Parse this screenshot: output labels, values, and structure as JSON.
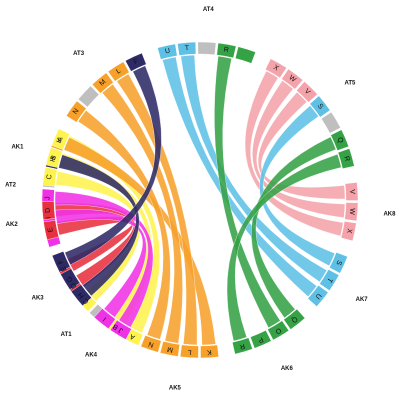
{
  "colors": {
    "yellow": "#FFF34D",
    "red": "#E8303F",
    "magenta": "#F032E6",
    "navy": "#2D2A66",
    "orange": "#F7A12B",
    "blue": "#5FC0E6",
    "green": "#34A245",
    "pink": "#F4A3AA",
    "gray": "#BFBFBF"
  },
  "sectors": [
    {
      "name": "AT1",
      "segments": [
        {
          "label": "A",
          "color": "yellow"
        },
        {
          "label": "B",
          "color": "yellow"
        },
        {
          "label": "",
          "color": "gray"
        },
        {
          "label": "C",
          "color": "yellow"
        },
        {
          "label": "D",
          "color": "red"
        },
        {
          "label": "E",
          "color": "red"
        }
      ]
    },
    {
      "name": "AT2",
      "segments": [
        {
          "label": "",
          "color": "magenta"
        },
        {
          "label": "I",
          "color": "magenta"
        },
        {
          "label": "J",
          "color": "magenta"
        },
        {
          "label": "",
          "color": "gray"
        },
        {
          "label": "H",
          "color": "navy"
        },
        {
          "label": "K",
          "color": "orange"
        }
      ]
    },
    {
      "name": "AT3",
      "segments": [
        {
          "label": "N",
          "color": "orange"
        },
        {
          "label": "",
          "color": "gray"
        },
        {
          "label": "M",
          "color": "orange"
        },
        {
          "label": "L",
          "color": "orange"
        },
        {
          "label": "F",
          "color": "navy"
        }
      ]
    },
    {
      "name": "AT4",
      "segments": [
        {
          "label": "U",
          "color": "blue"
        },
        {
          "label": "T",
          "color": "blue"
        },
        {
          "label": "",
          "color": "gray"
        },
        {
          "label": "R",
          "color": "green"
        },
        {
          "label": "",
          "color": "green"
        }
      ]
    },
    {
      "name": "AT5",
      "segments": [
        {
          "label": "X",
          "color": "pink"
        },
        {
          "label": "W",
          "color": "pink"
        },
        {
          "label": "V",
          "color": "pink"
        },
        {
          "label": "S",
          "color": "blue"
        },
        {
          "label": "",
          "color": "gray"
        },
        {
          "label": "Q",
          "color": "green"
        },
        {
          "label": "R",
          "color": "green"
        }
      ]
    },
    {
      "name": "AK8",
      "segments": [
        {
          "label": "V",
          "color": "pink"
        },
        {
          "label": "W",
          "color": "pink"
        },
        {
          "label": "X",
          "color": "pink"
        }
      ]
    },
    {
      "name": "AK7",
      "segments": [
        {
          "label": "S",
          "color": "blue"
        },
        {
          "label": "T",
          "color": "blue"
        },
        {
          "label": "U",
          "color": "blue"
        }
      ]
    },
    {
      "name": "AK6",
      "segments": [
        {
          "label": "Q",
          "color": "green"
        },
        {
          "label": "O",
          "color": "green"
        },
        {
          "label": "P",
          "color": "green"
        },
        {
          "label": "R",
          "color": "green"
        }
      ]
    },
    {
      "name": "AK5",
      "segments": [
        {
          "label": "K",
          "color": "orange"
        },
        {
          "label": "L",
          "color": "orange"
        },
        {
          "label": "M",
          "color": "orange"
        },
        {
          "label": "N",
          "color": "orange"
        }
      ]
    },
    {
      "name": "AK4",
      "segments": [
        {
          "label": "J",
          "color": "magenta"
        },
        {
          "label": "I",
          "color": "magenta"
        }
      ]
    },
    {
      "name": "AK3",
      "segments": [
        {
          "label": "H",
          "color": "navy"
        },
        {
          "label": "G",
          "color": "navy"
        },
        {
          "label": "F",
          "color": "navy"
        }
      ]
    },
    {
      "name": "AK2",
      "segments": [
        {
          "label": "E",
          "color": "red"
        },
        {
          "label": "D",
          "color": "red"
        }
      ]
    },
    {
      "name": "AK1",
      "segments": [
        {
          "label": "C",
          "color": "yellow"
        },
        {
          "label": "B",
          "color": "yellow"
        },
        {
          "label": "A",
          "color": "yellow"
        }
      ]
    }
  ],
  "links": [
    {
      "from": "AT1.A",
      "to": "AK1.A",
      "color": "yellow"
    },
    {
      "from": "AT1.B",
      "to": "AK1.B",
      "color": "yellow"
    },
    {
      "from": "AT1.C",
      "to": "AK1.C",
      "color": "yellow"
    },
    {
      "from": "AT1.D",
      "to": "AK2.D",
      "color": "red"
    },
    {
      "from": "AT1.E",
      "to": "AK2.E",
      "color": "red"
    },
    {
      "from": "AT2.I",
      "to": "AK4.I",
      "color": "magenta"
    },
    {
      "from": "AT2.J",
      "to": "AK4.J",
      "color": "magenta"
    },
    {
      "from": "AT2.H",
      "to": "AK3.H",
      "color": "navy"
    },
    {
      "from": "AT2.K",
      "to": "AK5.K",
      "color": "orange"
    },
    {
      "from": "AT3.N",
      "to": "AK5.N",
      "color": "orange"
    },
    {
      "from": "AT3.M",
      "to": "AK5.M",
      "color": "orange"
    },
    {
      "from": "AT3.L",
      "to": "AK5.L",
      "color": "orange"
    },
    {
      "from": "AT3.F",
      "to": "AK3.F",
      "color": "navy"
    },
    {
      "from": "AT4.U",
      "to": "AK7.U",
      "color": "blue"
    },
    {
      "from": "AT4.T",
      "to": "AK7.T",
      "color": "blue"
    },
    {
      "from": "AT4.R",
      "to": "AK6.O",
      "color": "green"
    },
    {
      "from": "AT5.X",
      "to": "AK8.X",
      "color": "pink"
    },
    {
      "from": "AT5.W",
      "to": "AK8.W",
      "color": "pink"
    },
    {
      "from": "AT5.V",
      "to": "AK8.V",
      "color": "pink"
    },
    {
      "from": "AT5.S",
      "to": "AK7.S",
      "color": "blue"
    },
    {
      "from": "AT5.Q",
      "to": "AK6.Q",
      "color": "green"
    },
    {
      "from": "AT5.R",
      "to": "AK6.R",
      "color": "green"
    }
  ]
}
